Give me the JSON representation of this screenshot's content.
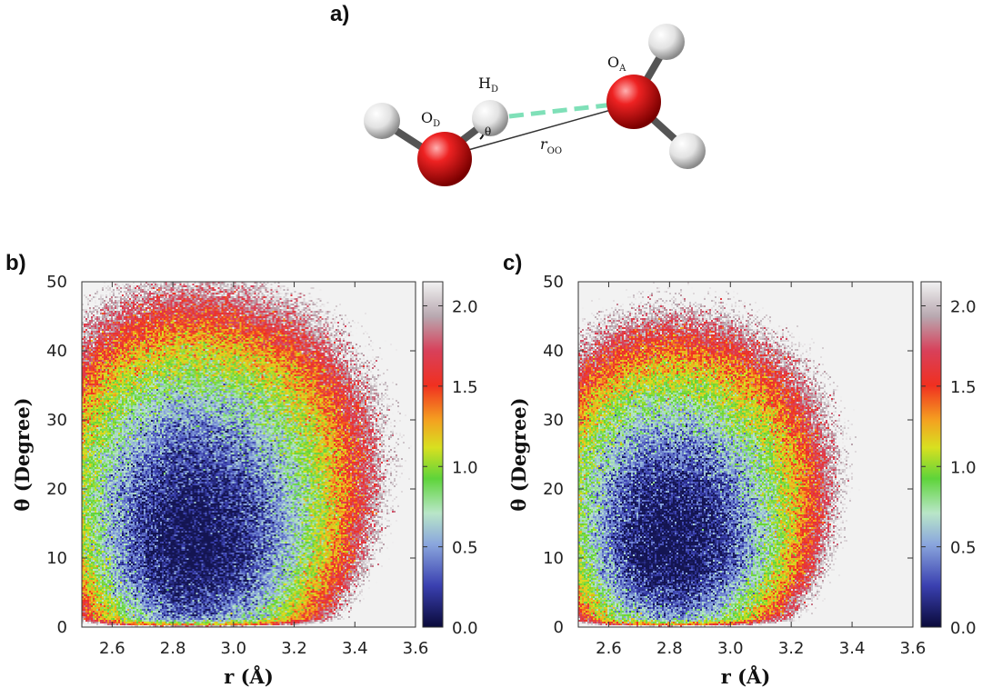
{
  "figure": {
    "panel_a_label": "a)",
    "panel_b_label": "b)",
    "panel_c_label": "c)"
  },
  "molecule": {
    "donor_oxygen": {
      "main": "O",
      "sub": "D"
    },
    "acceptor_oxygen": {
      "main": "O",
      "sub": "A"
    },
    "donor_hydrogen": {
      "main": "H",
      "sub": "D"
    },
    "angle_symbol": "θ",
    "distance": {
      "main": "r",
      "sub": "OO"
    },
    "colors": {
      "oxygen": "#e21e1e",
      "hydrogen": "#e8e8e8",
      "hbond": "#7fe0b8",
      "bond": "#555555"
    }
  },
  "chart_data": [
    {
      "type": "heatmap",
      "panel": "b)",
      "xlabel": "r (Å)",
      "ylabel": "θ (Degree)",
      "xlim": [
        2.5,
        3.6
      ],
      "ylim": [
        0,
        50
      ],
      "xticks": [
        "2.6",
        "2.8",
        "3.0",
        "3.2",
        "3.4",
        "3.6"
      ],
      "yticks": [
        "0",
        "10",
        "20",
        "30",
        "40",
        "50"
      ],
      "colorbar": {
        "range": [
          0.0,
          2.15
        ],
        "ticks": [
          "0.0",
          "0.5",
          "1.0",
          "1.5",
          "2.0"
        ]
      },
      "distribution": {
        "center_r": 2.86,
        "center_theta": 11,
        "spread_r": 0.17,
        "spread_theta": 9.5,
        "max_r": 3.55,
        "max_theta": 50
      }
    },
    {
      "type": "heatmap",
      "panel": "c)",
      "xlabel": "r (Å)",
      "ylabel": "θ (Degree)",
      "xlim": [
        2.5,
        3.6
      ],
      "ylim": [
        0,
        50
      ],
      "xticks": [
        "2.6",
        "2.8",
        "3.0",
        "3.2",
        "3.4",
        "3.6"
      ],
      "yticks": [
        "0",
        "10",
        "20",
        "30",
        "40",
        "50"
      ],
      "colorbar": {
        "range": [
          0.0,
          2.15
        ],
        "ticks": [
          "0.0",
          "0.5",
          "1.0",
          "1.5",
          "2.0"
        ]
      },
      "distribution": {
        "center_r": 2.8,
        "center_theta": 11,
        "spread_r": 0.15,
        "spread_theta": 8.5,
        "max_r": 3.5,
        "max_theta": 50
      }
    }
  ]
}
